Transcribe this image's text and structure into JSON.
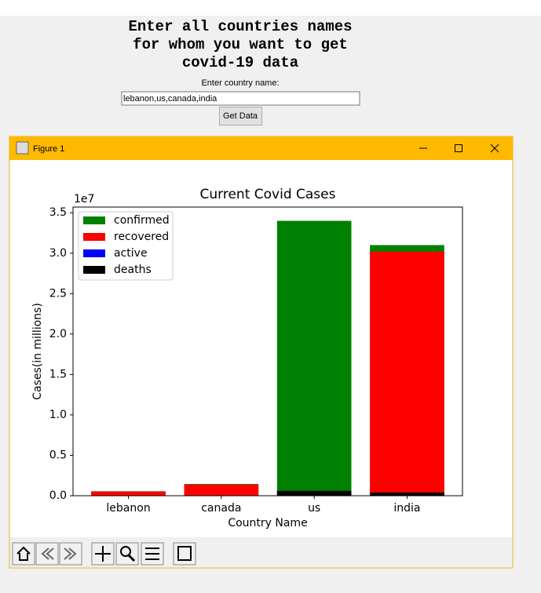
{
  "window": {
    "title_lines": [
      "Enter all countries names",
      "for whom you want to get",
      "covid-19 data"
    ],
    "label": "Enter country name:",
    "entry": "lebanon,us,canada,india",
    "button": "Get Data"
  },
  "figure_window": {
    "title": "Figure 1"
  },
  "chart_data": {
    "type": "bar",
    "title": "Current Covid Cases",
    "x_label": "Country Name",
    "y_label": "Cases(in millions)",
    "y_offset_text": "1e7",
    "categories": [
      "lebanon",
      "canada",
      "us",
      "india"
    ],
    "series": [
      {
        "name": "confirmed",
        "color": "#008000",
        "values": [
          0.055,
          0.145,
          3.4,
          3.1
        ]
      },
      {
        "name": "recovered",
        "color": "#ff0000",
        "values": [
          0.053,
          0.14,
          0,
          3.02
        ]
      },
      {
        "name": "active",
        "color": "#0000ff",
        "values": [
          0.001,
          0.001,
          0,
          0.035
        ]
      },
      {
        "name": "deaths",
        "color": "#000000",
        "values": [
          0.001,
          0.0026,
          0.06,
          0.04
        ]
      }
    ],
    "ylim": [
      0,
      3.57
    ],
    "yticks": [
      {
        "value": 0,
        "label": "0.0"
      },
      0.5,
      {
        "value": 1,
        "label": "1.0"
      },
      1.5,
      {
        "value": 2,
        "label": "2.0"
      },
      2.5,
      {
        "value": 3,
        "label": "3.0"
      },
      3.5
    ],
    "legend": "upper left"
  }
}
